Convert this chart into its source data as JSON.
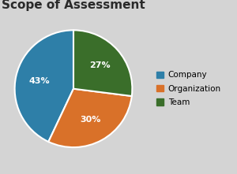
{
  "title": "Scope of Assessment",
  "slices": [
    43,
    30,
    27
  ],
  "labels": [
    "Company",
    "Organization",
    "Team"
  ],
  "colors": [
    "#2e7fa8",
    "#d97129",
    "#3a6e2a"
  ],
  "pct_labels": [
    "43%",
    "30%",
    "27%"
  ],
  "start_angle": 90,
  "background_color": "#d4d4d4",
  "title_fontsize": 11,
  "pct_fontsize": 8,
  "legend_fontsize": 7.5
}
